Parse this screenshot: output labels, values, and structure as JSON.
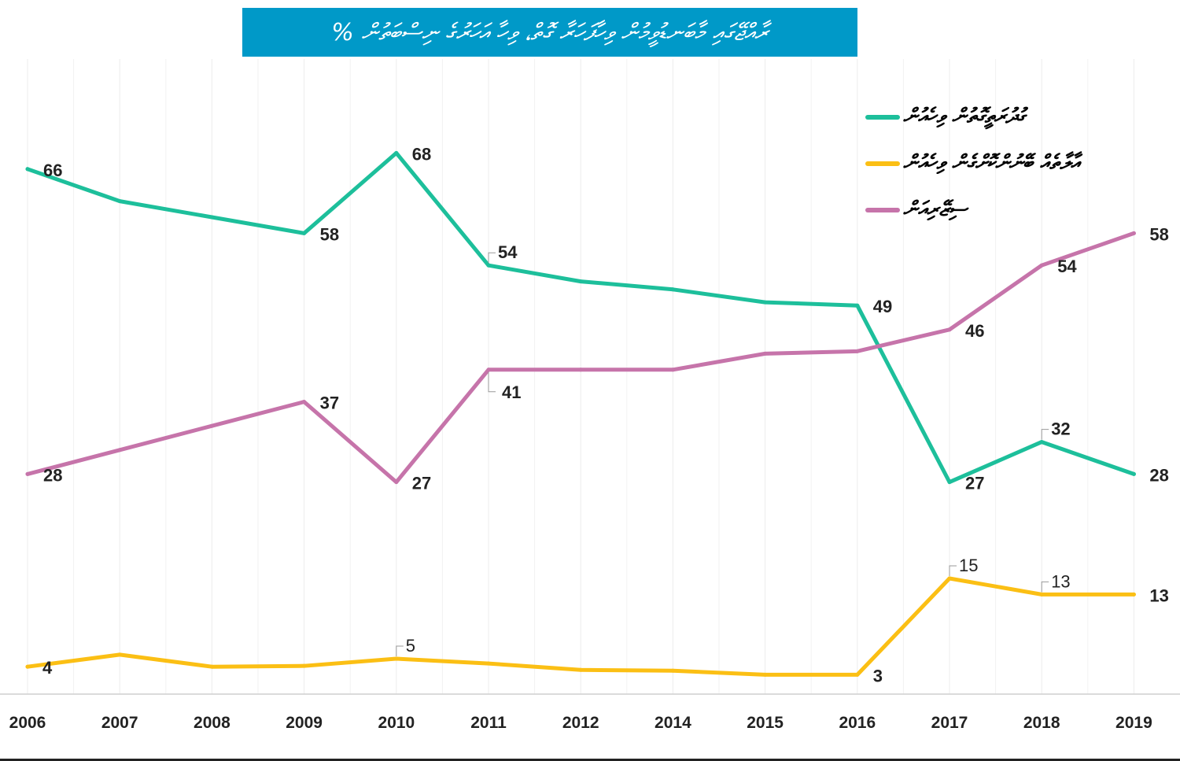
{
  "chart_data": {
    "type": "line",
    "title": "ރާއްޖޭގައި މާބަނޑުވީމުން ވިހާފަހަރާ ގޮތް، ވިހާ އަހަރުގެ ނިސްބަތުން %",
    "categories": [
      "2006",
      "2007",
      "2008",
      "2009",
      "2010",
      "2011",
      "2012",
      "2014",
      "2015",
      "2016",
      "2017",
      "2018",
      "2019"
    ],
    "ylim": [
      0,
      70
    ],
    "grid": "vertical",
    "legend_position": "top-right",
    "series": [
      {
        "name": "ގުދުރަތީގޮތުން ވިހެއުން",
        "color": "#1dbf9b",
        "values": [
          66,
          62,
          60,
          58,
          68,
          54,
          52,
          51,
          49.4,
          49,
          27,
          32,
          28
        ],
        "labels": [
          "66",
          null,
          null,
          "58",
          "68",
          "54",
          null,
          null,
          null,
          "49",
          "27",
          "32",
          "28"
        ]
      },
      {
        "name": "އާލާތެއް ބޭނުންކޮށްގެން ވިހެއުން",
        "color": "#fbbf14",
        "values": [
          4,
          5.5,
          4,
          4.1,
          5,
          4.4,
          3.6,
          3.5,
          3,
          3,
          15,
          13,
          13
        ],
        "labels": [
          "4",
          null,
          null,
          null,
          "5",
          null,
          null,
          null,
          null,
          "3",
          "15",
          "13",
          "13"
        ]
      },
      {
        "name": "ސިޒޭރިއަން",
        "color": "#c674aa",
        "values": [
          28,
          31,
          34,
          37,
          27,
          41,
          41,
          41,
          43,
          43.3,
          46,
          54,
          58
        ],
        "labels": [
          "28",
          null,
          null,
          "37",
          "27",
          "41",
          null,
          null,
          null,
          null,
          "46",
          "54",
          "58"
        ]
      }
    ]
  }
}
